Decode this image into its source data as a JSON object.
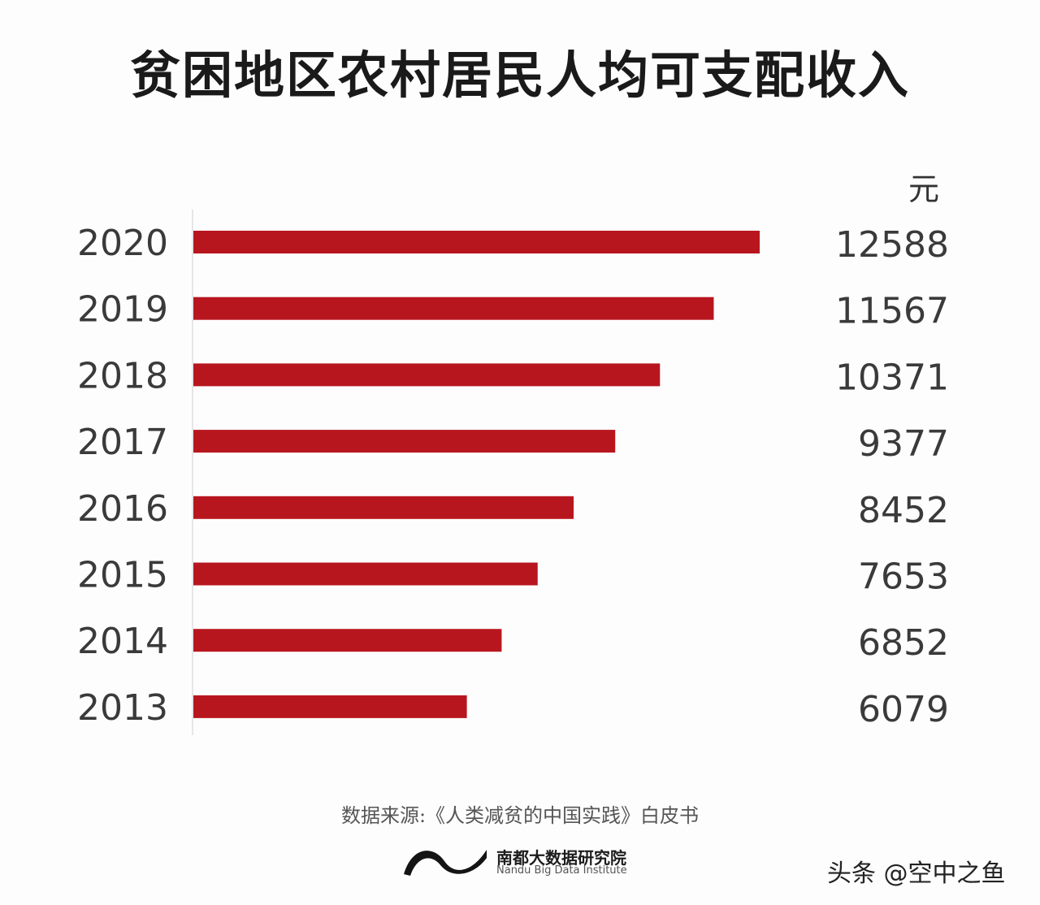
{
  "chart_data": {
    "type": "bar",
    "orientation": "horizontal",
    "title": "贫困地区农村居民人均可支配收入",
    "unit": "元",
    "categories": [
      "2020",
      "2019",
      "2018",
      "2017",
      "2016",
      "2015",
      "2014",
      "2013"
    ],
    "values": [
      12588,
      11567,
      10371,
      9377,
      8452,
      7653,
      6852,
      6079
    ],
    "value_labels": [
      "12588",
      "11567",
      "10371",
      "9377",
      "8452",
      "7653",
      "6852",
      "6079"
    ],
    "bar_color": "#b8161e",
    "legend": "none",
    "grid": false
  },
  "source_text": "数据来源:《人类减贫的中国实践》白皮书",
  "brand": {
    "name_cn": "南都大数据研究院",
    "name_en": "Nandu Big Data Institute"
  },
  "watermark": "头条 @空中之鱼"
}
